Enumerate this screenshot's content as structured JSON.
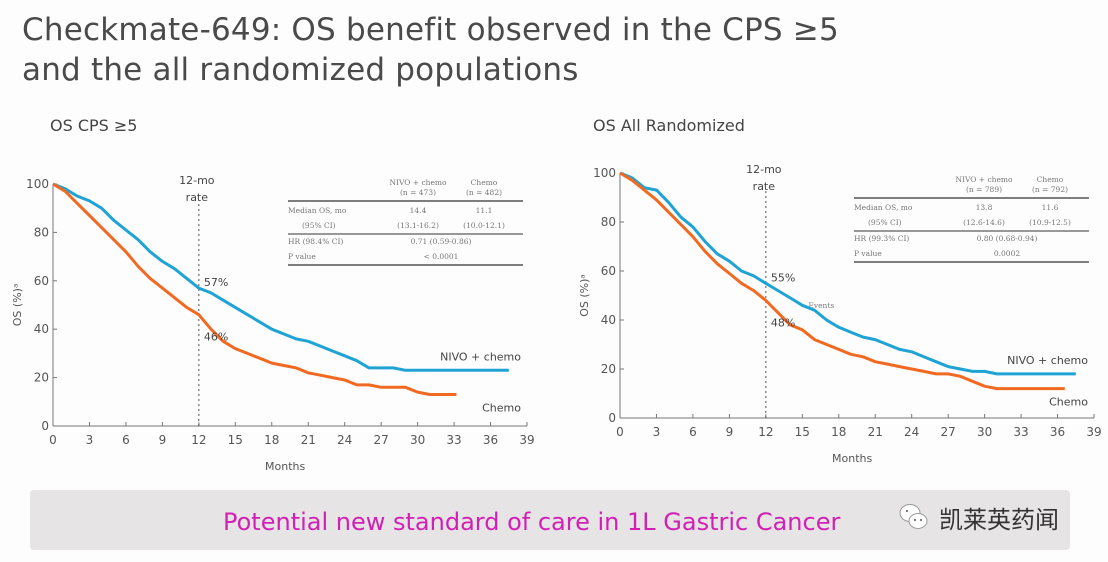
{
  "title_line1": "Checkmate-649: OS benefit observed in the CPS ≥5",
  "title_line2": "and the all randomized populations",
  "banner": {
    "text": "Potential new standard of care in 1L Gastric Cancer",
    "watermark_icon": "wechat-icon",
    "watermark_text": "凯莱英药闻"
  },
  "colors": {
    "nivo": "#1fa3d4",
    "chemo": "#f26a22",
    "banner_text": "#d21fb4"
  },
  "chart_data": [
    {
      "type": "line",
      "panel_title": "OS CPS ≥5",
      "xlabel": "Months",
      "ylabel": "OS (%)ᵃ",
      "xlim": [
        0,
        39
      ],
      "ylim": [
        0,
        100
      ],
      "x_ticks": [
        0,
        3,
        6,
        9,
        12,
        15,
        18,
        21,
        24,
        27,
        30,
        33,
        36,
        39
      ],
      "y_ticks": [
        0,
        20,
        40,
        60,
        80,
        100
      ],
      "annotation_line": {
        "x": 12,
        "label_line1": "12-mo",
        "label_line2": "rate"
      },
      "series": [
        {
          "name": "NIVO + chemo",
          "key": "nivo",
          "rate_label": "57%",
          "x": [
            0,
            1,
            2,
            3,
            4,
            5,
            6,
            7,
            8,
            9,
            10,
            11,
            12,
            13,
            14,
            15,
            16,
            17,
            18,
            19,
            20,
            21,
            22,
            23,
            24,
            25,
            26,
            27,
            28,
            29,
            30,
            31,
            32,
            33,
            34,
            35,
            36,
            37.5
          ],
          "y": [
            100,
            98,
            95,
            93,
            90,
            85,
            81,
            77,
            72,
            68,
            65,
            61,
            57,
            55,
            52,
            49,
            46,
            43,
            40,
            38,
            36,
            35,
            33,
            31,
            29,
            27,
            24,
            24,
            24,
            23,
            23,
            23,
            23,
            23,
            23,
            23,
            23,
            23
          ]
        },
        {
          "name": "Chemo",
          "key": "chemo",
          "rate_label": "46%",
          "x": [
            0,
            1,
            2,
            3,
            4,
            5,
            6,
            7,
            8,
            9,
            10,
            11,
            12,
            13,
            14,
            15,
            16,
            17,
            18,
            19,
            20,
            21,
            22,
            23,
            24,
            25,
            26,
            27,
            28,
            29,
            30,
            31,
            32,
            33.2
          ],
          "y": [
            100,
            97,
            92,
            87,
            82,
            77,
            72,
            66,
            61,
            57,
            53,
            49,
            46,
            40,
            35,
            32,
            30,
            28,
            26,
            25,
            24,
            22,
            21,
            20,
            19,
            17,
            17,
            16,
            16,
            16,
            14,
            13,
            13,
            13
          ]
        }
      ],
      "table": {
        "col_headers": [
          [
            "NIVO + chemo",
            "(n = 473)"
          ],
          [
            "Chemo",
            "(n = 482)"
          ]
        ],
        "rows": [
          {
            "label": "Median OS, mo",
            "values": [
              "14.4",
              "11.1"
            ]
          },
          {
            "label": "(95% CI)",
            "values": [
              "(13.1-16.2)",
              "(10.0-12.1)"
            ]
          },
          {
            "label": "HR (98.4% CI)",
            "values": [
              "0.71 (0.59-0.86)"
            ]
          },
          {
            "label": "P value",
            "values": [
              "< 0.0001"
            ]
          }
        ]
      }
    },
    {
      "type": "line",
      "panel_title": "OS All Randomized",
      "xlabel": "Months",
      "ylabel": "OS (%)ᵃ",
      "xlim": [
        0,
        39
      ],
      "ylim": [
        0,
        100
      ],
      "x_ticks": [
        0,
        3,
        6,
        9,
        12,
        15,
        18,
        21,
        24,
        27,
        30,
        33,
        36,
        39
      ],
      "y_ticks": [
        0,
        20,
        40,
        60,
        80,
        100
      ],
      "annotation_line": {
        "x": 12,
        "label_line1": "12-mo",
        "label_line2": "rate"
      },
      "mid_annotation": "Events",
      "series": [
        {
          "name": "NIVO + chemo",
          "key": "nivo",
          "rate_label": "55%",
          "x": [
            0,
            1,
            2,
            3,
            4,
            5,
            6,
            7,
            8,
            9,
            10,
            11,
            12,
            13,
            14,
            15,
            16,
            17,
            18,
            19,
            20,
            21,
            22,
            23,
            24,
            25,
            26,
            27,
            28,
            29,
            30,
            31,
            32,
            33,
            34,
            35,
            36,
            37.5
          ],
          "y": [
            100,
            98,
            94,
            93,
            88,
            82,
            78,
            72,
            67,
            64,
            60,
            58,
            55,
            52,
            49,
            46,
            44,
            40,
            37,
            35,
            33,
            32,
            30,
            28,
            27,
            25,
            23,
            21,
            20,
            19,
            19,
            18,
            18,
            18,
            18,
            18,
            18,
            18
          ]
        },
        {
          "name": "Chemo",
          "key": "chemo",
          "rate_label": "48%",
          "x": [
            0,
            1,
            2,
            3,
            4,
            5,
            6,
            7,
            8,
            9,
            10,
            11,
            12,
            13,
            14,
            15,
            16,
            17,
            18,
            19,
            20,
            21,
            22,
            23,
            24,
            25,
            26,
            27,
            28,
            29,
            30,
            31,
            32,
            33,
            34,
            35,
            36,
            36.6
          ],
          "y": [
            100,
            97,
            93,
            89,
            84,
            79,
            74,
            68,
            63,
            59,
            55,
            52,
            48,
            43,
            38,
            36,
            32,
            30,
            28,
            26,
            25,
            23,
            22,
            21,
            20,
            19,
            18,
            18,
            17,
            15,
            13,
            12,
            12,
            12,
            12,
            12,
            12,
            12
          ]
        }
      ],
      "table": {
        "col_headers": [
          [
            "NIVO + chemo",
            "(n = 789)"
          ],
          [
            "Chemo",
            "(n = 792)"
          ]
        ],
        "rows": [
          {
            "label": "Median OS, mo",
            "values": [
              "13.8",
              "11.6"
            ]
          },
          {
            "label": "(95% CI)",
            "values": [
              "(12.6-14.6)",
              "(10.9-12.5)"
            ]
          },
          {
            "label": "HR (99.3% CI)",
            "values": [
              "0.80 (0.68-0.94)"
            ]
          },
          {
            "label": "P value",
            "values": [
              "0.0002"
            ]
          }
        ]
      }
    }
  ]
}
